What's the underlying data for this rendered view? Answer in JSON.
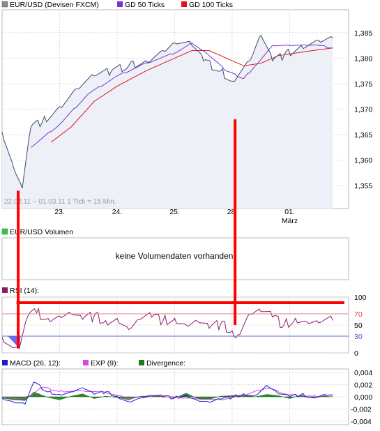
{
  "price_panel": {
    "legend": [
      {
        "label": "EUR/USD (Devisen FXCM)",
        "color": "#8a8a8a"
      },
      {
        "label": "GD 50 Ticks",
        "color": "#7b2fd6"
      },
      {
        "label": "GD 100 Ticks",
        "color": "#e0101c"
      }
    ],
    "info": "22.02.11 – 01.03.11   1 Tick = 15 Min.",
    "date_labels": [
      "23.",
      "24.",
      "25.",
      "28.",
      "01.",
      "März"
    ]
  },
  "volume_panel": {
    "legend": "EUR/USD Volumen",
    "legend_color": "#3fbf4a",
    "message": "keine Volumendaten vorhanden"
  },
  "rsi_panel": {
    "legend": "RSI (14):",
    "legend_color": "#8b1a6b",
    "axis_labels": [
      "100",
      "70",
      "50",
      "30",
      "0"
    ]
  },
  "macd_panel": {
    "legend": [
      {
        "label": "MACD (26, 12):",
        "color": "#1c1cd6"
      },
      {
        "label": "EXP (9):",
        "color": "#e040e0"
      },
      {
        "label": "Divergence:",
        "color": "#1f7a1f"
      }
    ],
    "axis_labels": [
      "0,004",
      "0,002",
      "0,000",
      "-0,002",
      "-0,004"
    ]
  },
  "chart_data": [
    {
      "type": "line",
      "title": "EUR/USD (Devisen FXCM)",
      "x": [
        0,
        0.2,
        0.35,
        0.5,
        0.7,
        1.0,
        1.3,
        1.6,
        1.9,
        2.2,
        2.5,
        2.8,
        3.0,
        3.3,
        3.5,
        3.8,
        4.0,
        4.3,
        4.5,
        4.7,
        4.9,
        5.2,
        5.5,
        5.75
      ],
      "x_ticks": {
        "labels": [
          "23.",
          "24.",
          "25.",
          "28.",
          "01."
        ],
        "positions": [
          1,
          2,
          3,
          4,
          5
        ]
      },
      "ylim": [
        1.3505,
        1.3895
      ],
      "y_ticks": [
        1.355,
        1.36,
        1.365,
        1.37,
        1.375,
        1.38,
        1.385
      ],
      "series": [
        {
          "name": "EUR/USD (Devisen FXCM)",
          "color": "#3a4a66",
          "values": [
            1.3655,
            1.3585,
            1.3545,
            1.3665,
            1.3675,
            1.3705,
            1.374,
            1.3765,
            1.3775,
            1.3785,
            1.3795,
            1.3815,
            1.383,
            1.3825,
            1.3795,
            1.3775,
            1.3755,
            1.3795,
            1.3845,
            1.3795,
            1.3805,
            1.3825,
            1.3835,
            1.384
          ]
        },
        {
          "name": "GD 50 Ticks",
          "color": "#7b2fd6",
          "x": [
            0.5,
            1.0,
            1.5,
            2.0,
            2.5,
            3.0,
            3.3,
            3.6,
            3.9,
            4.2,
            4.4,
            4.7,
            5.0,
            5.3,
            5.5,
            5.75
          ],
          "values": [
            1.3625,
            1.367,
            1.373,
            1.3765,
            1.379,
            1.381,
            1.383,
            1.3805,
            1.3775,
            1.376,
            1.3785,
            1.3825,
            1.3825,
            1.3825,
            1.3825,
            1.382
          ]
        },
        {
          "name": "GD 100 Ticks",
          "color": "#e0101c",
          "x": [
            0.85,
            1.2,
            1.6,
            2.0,
            2.5,
            3.0,
            3.3,
            3.6,
            3.9,
            4.2,
            4.5,
            4.8,
            5.1,
            5.4,
            5.75
          ],
          "values": [
            1.3635,
            1.3665,
            1.3715,
            1.3745,
            1.3775,
            1.38,
            1.3815,
            1.3815,
            1.38,
            1.3785,
            1.379,
            1.3805,
            1.381,
            1.3815,
            1.382
          ]
        }
      ],
      "grid": true
    },
    {
      "type": "line",
      "title": "RSI (14):",
      "ylim": [
        0,
        100
      ],
      "y_ticks": [
        0,
        30,
        50,
        70,
        100
      ],
      "reference_lines": [
        70,
        30
      ],
      "series": [
        {
          "name": "RSI (14):",
          "color": "#8b1a6b",
          "x": [
            0,
            0.15,
            0.3,
            0.45,
            0.6,
            0.8,
            1.0,
            1.2,
            1.4,
            1.6,
            1.8,
            2.0,
            2.2,
            2.4,
            2.6,
            2.8,
            3.0,
            3.2,
            3.4,
            3.6,
            3.8,
            4.0,
            4.1,
            4.3,
            4.5,
            4.7,
            4.9,
            5.1,
            5.3,
            5.5,
            5.75
          ],
          "values": [
            28,
            12,
            8,
            66,
            72,
            62,
            66,
            70,
            60,
            66,
            58,
            62,
            42,
            60,
            64,
            58,
            62,
            50,
            56,
            44,
            52,
            40,
            32,
            70,
            74,
            64,
            50,
            62,
            56,
            54,
            58
          ]
        }
      ]
    },
    {
      "type": "line",
      "title": "MACD (26, 12):",
      "ylim": [
        -0.0046,
        0.0046
      ],
      "y_ticks": [
        -0.004,
        -0.002,
        0.0,
        0.002,
        0.004
      ],
      "series": [
        {
          "name": "MACD (26, 12):",
          "color": "#1c1cd6",
          "x": [
            0,
            0.2,
            0.4,
            0.55,
            0.8,
            1.0,
            1.2,
            1.4,
            1.6,
            1.8,
            2.0,
            2.2,
            2.4,
            2.6,
            2.8,
            3.0,
            3.2,
            3.4,
            3.6,
            3.8,
            4.0,
            4.2,
            4.4,
            4.6,
            4.8,
            5.0,
            5.2,
            5.4,
            5.6,
            5.75
          ],
          "values": [
            -0.0002,
            -0.0009,
            -0.0012,
            0.0024,
            0.0008,
            0.0004,
            0.0008,
            0.0015,
            0.0004,
            0.0008,
            0.0001,
            -0.0008,
            -0.0002,
            0.0002,
            0.0001,
            -0.0002,
            0.0003,
            -0.0006,
            -0.0009,
            -0.0004,
            -0.0001,
            0.0005,
            0.0002,
            0.0019,
            0.0005,
            0.0,
            0.0004,
            -0.0001,
            0.0004,
            0.0003
          ]
        },
        {
          "name": "EXP (9):",
          "color": "#e040e0",
          "x": [
            0,
            0.3,
            0.5,
            0.7,
            1.0,
            1.4,
            1.8,
            2.2,
            2.6,
            3.0,
            3.4,
            3.8,
            4.2,
            4.6,
            5.0,
            5.4,
            5.75
          ],
          "values": [
            0.0,
            -0.0004,
            0.0002,
            0.0016,
            0.0009,
            0.001,
            0.0007,
            -0.0003,
            0.0001,
            0.0,
            -0.0003,
            -0.0005,
            0.0002,
            0.0015,
            0.0003,
            0.0001,
            0.0003
          ]
        },
        {
          "name": "Divergence:",
          "color": "#1f7a1f",
          "type": "area",
          "x": [
            0,
            0.2,
            0.4,
            0.55,
            0.8,
            1.0,
            1.2,
            1.4,
            1.6,
            1.8,
            2.0,
            2.2,
            2.4,
            2.6,
            2.8,
            3.0,
            3.2,
            3.4,
            3.6,
            3.8,
            4.0,
            4.2,
            4.4,
            4.6,
            4.8,
            5.0,
            5.2,
            5.4,
            5.6,
            5.75
          ],
          "values": [
            -0.0002,
            -0.0005,
            -0.0006,
            0.0008,
            -0.0001,
            -0.0005,
            0.0001,
            0.0005,
            -0.0003,
            0.0001,
            -0.0001,
            -0.0005,
            0.0001,
            0.0001,
            0.0001,
            -0.0002,
            0.0006,
            -0.0003,
            -0.0004,
            0.0001,
            0.0002,
            0.0003,
            0.0,
            0.0004,
            0.0002,
            -0.0003,
            0.0003,
            -0.0002,
            0.0001,
            0.0
          ]
        }
      ]
    }
  ],
  "annotations": [
    {
      "type": "vertical-line",
      "x": 0.28,
      "from_price": 1.354,
      "to_rsi": 8,
      "color": "#ff0000"
    },
    {
      "type": "vertical-line",
      "x": 4.05,
      "from_price": 1.368,
      "to_rsi": 50,
      "color": "#ff0000"
    },
    {
      "type": "horizontal-line",
      "x_from": 0.25,
      "x_to": 5.95,
      "rsi": 90,
      "color": "#ff0000"
    }
  ]
}
